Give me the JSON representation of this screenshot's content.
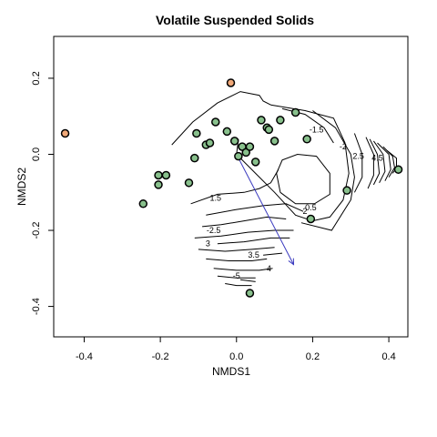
{
  "chart_data": {
    "type": "scatter",
    "title": "Volatile Suspended Solids",
    "xlabel": "NMDS1",
    "ylabel": "NMDS2",
    "xlim": [
      -0.48,
      0.45
    ],
    "ylim": [
      -0.48,
      0.31
    ],
    "xticks": [
      -0.4,
      -0.2,
      0.0,
      0.2,
      0.4
    ],
    "xtick_labels": [
      "-0.4",
      "-0.2",
      "0.0",
      "0.2",
      "0.4"
    ],
    "yticks": [
      -0.4,
      -0.2,
      0.0,
      0.2
    ],
    "ytick_labels": [
      "-0.4",
      "-0.2",
      "0.0",
      "0.2"
    ],
    "grid": false,
    "point_colors": {
      "green": "#88c08c",
      "orange": "#f0a878",
      "outline": "#000000"
    },
    "points": [
      {
        "x": -0.45,
        "y": 0.055,
        "color": "orange"
      },
      {
        "x": -0.015,
        "y": 0.188,
        "color": "orange"
      },
      {
        "x": -0.245,
        "y": -0.13,
        "color": "green"
      },
      {
        "x": -0.205,
        "y": -0.055,
        "color": "green"
      },
      {
        "x": -0.185,
        "y": -0.055,
        "color": "green"
      },
      {
        "x": -0.205,
        "y": -0.08,
        "color": "green"
      },
      {
        "x": -0.125,
        "y": -0.075,
        "color": "green"
      },
      {
        "x": -0.11,
        "y": -0.01,
        "color": "green"
      },
      {
        "x": -0.105,
        "y": 0.055,
        "color": "green"
      },
      {
        "x": -0.08,
        "y": 0.025,
        "color": "green"
      },
      {
        "x": -0.07,
        "y": 0.03,
        "color": "green"
      },
      {
        "x": -0.055,
        "y": 0.085,
        "color": "green"
      },
      {
        "x": -0.025,
        "y": 0.06,
        "color": "green"
      },
      {
        "x": -0.005,
        "y": 0.035,
        "color": "green"
      },
      {
        "x": 0.005,
        "y": -0.005,
        "color": "green"
      },
      {
        "x": 0.015,
        "y": 0.02,
        "color": "green"
      },
      {
        "x": 0.025,
        "y": 0.005,
        "color": "green"
      },
      {
        "x": 0.035,
        "y": 0.02,
        "color": "green"
      },
      {
        "x": 0.05,
        "y": -0.02,
        "color": "green"
      },
      {
        "x": 0.065,
        "y": 0.09,
        "color": "green"
      },
      {
        "x": 0.08,
        "y": 0.07,
        "color": "green"
      },
      {
        "x": 0.085,
        "y": 0.065,
        "color": "green"
      },
      {
        "x": 0.1,
        "y": 0.035,
        "color": "green"
      },
      {
        "x": 0.115,
        "y": 0.09,
        "color": "green"
      },
      {
        "x": 0.155,
        "y": 0.11,
        "color": "green"
      },
      {
        "x": 0.185,
        "y": 0.04,
        "color": "green"
      },
      {
        "x": 0.195,
        "y": -0.17,
        "color": "green"
      },
      {
        "x": 0.29,
        "y": -0.095,
        "color": "green"
      },
      {
        "x": 0.425,
        "y": -0.04,
        "color": "green"
      },
      {
        "x": 0.035,
        "y": -0.365,
        "color": "green"
      }
    ],
    "arrow": {
      "x0": 0.0,
      "y0": 0.0,
      "x1": 0.15,
      "y1": -0.29,
      "color": "#3b3bbf"
    },
    "contours": [
      {
        "label": "0.5",
        "label_x": 0.195,
        "label_y": -0.14,
        "path": [
          [
            0.115,
            -0.1
          ],
          [
            0.155,
            -0.13
          ],
          [
            0.205,
            -0.13
          ],
          [
            0.245,
            -0.105
          ],
          [
            0.245,
            -0.05
          ],
          [
            0.21,
            -0.005
          ],
          [
            0.16,
            0.0
          ],
          [
            0.12,
            -0.015
          ],
          [
            0.105,
            -0.05
          ],
          [
            0.115,
            -0.1
          ]
        ]
      },
      {
        "label": "1",
        "path": [
          [
            -0.17,
            0.025
          ],
          [
            -0.115,
            0.085
          ],
          [
            -0.05,
            0.135
          ],
          [
            0.01,
            0.165
          ],
          [
            0.06,
            0.155
          ],
          [
            0.07,
            0.14
          ],
          [
            0.09,
            0.13
          ]
        ]
      },
      {
        "label": "1",
        "path": [
          [
            0.09,
            0.13
          ],
          [
            0.18,
            0.115
          ],
          [
            0.255,
            0.095
          ],
          [
            0.285,
            0.03
          ],
          [
            0.295,
            -0.05
          ],
          [
            0.28,
            -0.12
          ],
          [
            0.245,
            -0.165
          ],
          [
            0.2,
            -0.175
          ],
          [
            0.155,
            -0.16
          ],
          [
            0.1,
            -0.1
          ],
          [
            0.06,
            -0.06
          ],
          [
            0.0,
            0.0
          ],
          [
            0.005,
            0.04
          ]
        ]
      },
      {
        "label": "-1.5",
        "label_x": 0.21,
        "label_y": 0.065,
        "path": [
          [
            0.12,
            0.12
          ],
          [
            0.18,
            0.105
          ],
          [
            0.23,
            0.07
          ],
          [
            0.255,
            0.03
          ]
        ]
      },
      {
        "label": "1.5",
        "label_x": -0.055,
        "label_y": -0.115,
        "path": [
          [
            -0.12,
            -0.13
          ],
          [
            -0.05,
            -0.105
          ],
          [
            0.02,
            -0.1
          ],
          [
            0.06,
            -0.09
          ],
          [
            0.09,
            -0.075
          ],
          [
            0.11,
            -0.04
          ]
        ]
      },
      {
        "label": "-2",
        "label_x": 0.28,
        "label_y": 0.02,
        "path": [
          [
            0.2,
            0.115
          ],
          [
            0.26,
            0.07
          ],
          [
            0.3,
            0.0
          ],
          [
            0.31,
            -0.06
          ],
          [
            0.3,
            -0.12
          ],
          [
            0.25,
            -0.2
          ],
          [
            0.17,
            -0.18
          ]
        ]
      },
      {
        "label": "2",
        "label_x": 0.18,
        "label_y": -0.15,
        "path": [
          [
            -0.08,
            -0.16
          ],
          [
            0.0,
            -0.145
          ],
          [
            0.07,
            -0.135
          ],
          [
            0.13,
            -0.13
          ],
          [
            0.175,
            -0.15
          ]
        ]
      },
      {
        "label": "-2.5",
        "label_x": -0.06,
        "label_y": -0.2,
        "path": [
          [
            -0.09,
            -0.19
          ],
          [
            -0.04,
            -0.185
          ],
          [
            0.02,
            -0.175
          ],
          [
            0.08,
            -0.165
          ],
          [
            0.13,
            -0.17
          ]
        ]
      },
      {
        "label": "2.5",
        "label_x": 0.32,
        "label_y": -0.005,
        "path": [
          [
            0.31,
            0.055
          ],
          [
            0.33,
            0.0
          ],
          [
            0.33,
            -0.06
          ],
          [
            0.31,
            -0.1
          ]
        ]
      },
      {
        "label": "",
        "path": [
          [
            -0.11,
            -0.22
          ],
          [
            -0.04,
            -0.215
          ],
          [
            0.03,
            -0.205
          ],
          [
            0.1,
            -0.2
          ],
          [
            0.15,
            -0.2
          ]
        ]
      },
      {
        "label": "3",
        "label_x": -0.075,
        "label_y": -0.235,
        "path": [
          [
            -0.05,
            -0.235
          ],
          [
            0.02,
            -0.23
          ],
          [
            0.09,
            -0.22
          ],
          [
            0.14,
            -0.22
          ]
        ]
      },
      {
        "label": "",
        "path": [
          [
            -0.1,
            -0.25
          ],
          [
            -0.03,
            -0.255
          ],
          [
            0.04,
            -0.25
          ],
          [
            0.1,
            -0.245
          ]
        ]
      },
      {
        "label": "3.5",
        "label_x": 0.045,
        "label_y": -0.265,
        "path": [
          [
            0.07,
            -0.265
          ],
          [
            0.12,
            -0.26
          ]
        ]
      },
      {
        "label": "",
        "path": [
          [
            -0.08,
            -0.275
          ],
          [
            -0.02,
            -0.28
          ],
          [
            0.04,
            -0.28
          ],
          [
            0.08,
            -0.275
          ]
        ]
      },
      {
        "label": "4",
        "label_x": 0.085,
        "label_y": -0.3,
        "path": [
          [
            -0.06,
            -0.3
          ],
          [
            0.0,
            -0.305
          ],
          [
            0.06,
            -0.305
          ],
          [
            0.095,
            -0.3
          ]
        ]
      },
      {
        "label": "",
        "path": [
          [
            -0.05,
            -0.32
          ],
          [
            0.0,
            -0.325
          ],
          [
            0.05,
            -0.325
          ]
        ]
      },
      {
        "label": "-5",
        "label_x": 0.0,
        "label_y": -0.32,
        "path": [
          [
            0.01,
            -0.33
          ],
          [
            0.05,
            -0.335
          ]
        ]
      },
      {
        "label": "",
        "path": [
          [
            -0.03,
            -0.34
          ],
          [
            0.0,
            -0.345
          ],
          [
            0.04,
            -0.345
          ]
        ]
      },
      {
        "label": "4.5",
        "label_x": 0.37,
        "label_y": -0.01,
        "path": [
          [
            0.34,
            0.045
          ],
          [
            0.36,
            0.0
          ],
          [
            0.36,
            -0.055
          ],
          [
            0.345,
            -0.09
          ]
        ]
      },
      {
        "label": "",
        "path": [
          [
            0.35,
            0.04
          ],
          [
            0.37,
            0.0
          ],
          [
            0.375,
            -0.05
          ],
          [
            0.36,
            -0.08
          ]
        ]
      },
      {
        "label": "",
        "path": [
          [
            0.36,
            0.035
          ],
          [
            0.385,
            0.0
          ],
          [
            0.39,
            -0.045
          ],
          [
            0.375,
            -0.075
          ]
        ]
      },
      {
        "label": "",
        "path": [
          [
            0.37,
            0.03
          ],
          [
            0.4,
            0.0
          ],
          [
            0.405,
            -0.04
          ],
          [
            0.39,
            -0.07
          ]
        ]
      },
      {
        "label": "",
        "path": [
          [
            0.385,
            0.02
          ],
          [
            0.41,
            -0.005
          ],
          [
            0.415,
            -0.035
          ],
          [
            0.4,
            -0.06
          ]
        ]
      },
      {
        "label": "",
        "path": [
          [
            0.395,
            0.01
          ],
          [
            0.42,
            -0.01
          ],
          [
            0.42,
            -0.035
          ],
          [
            0.41,
            -0.05
          ]
        ]
      }
    ]
  }
}
